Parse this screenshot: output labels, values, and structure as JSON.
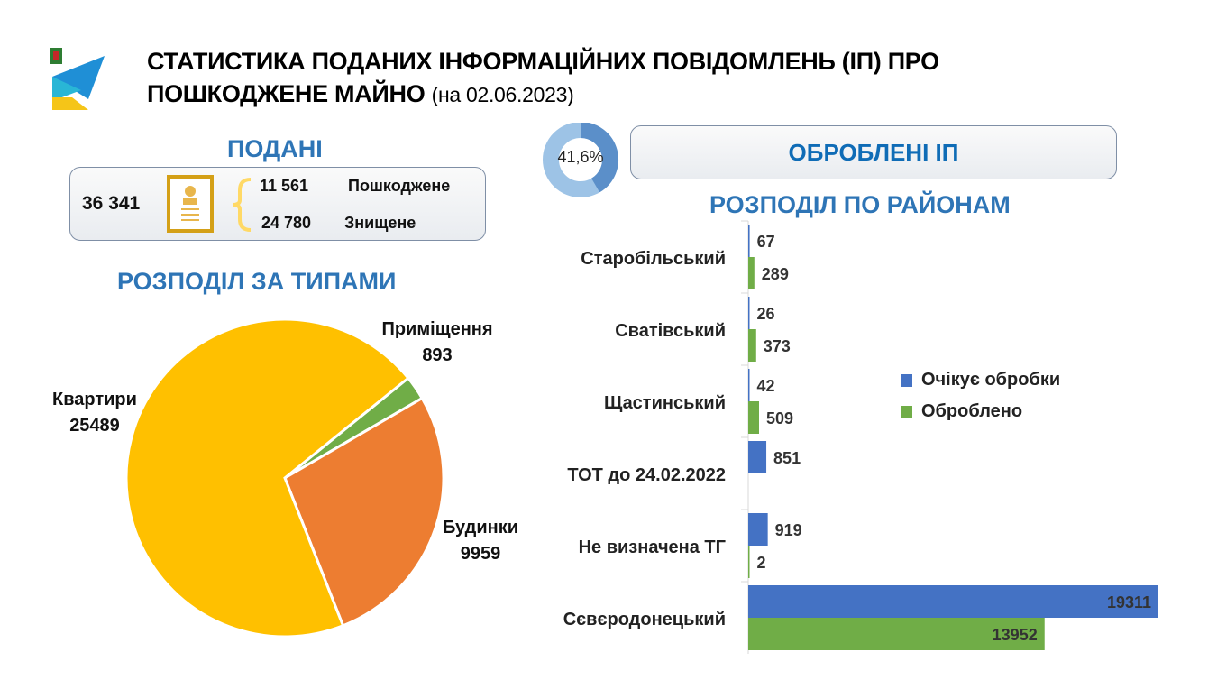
{
  "header": {
    "title_line1": "СТАТИСТИКА ПОДАНИХ ІНФОРМАЦІЙНИХ ПОВІДОМЛЕНЬ (ІП) ПРО",
    "title_line2": "ПОШКОДЖЕНЕ МАЙНО",
    "date": "(на 02.06.2023)"
  },
  "submitted": {
    "heading": "ПОДАНІ",
    "total": "36 341",
    "damaged_value": "11 561",
    "damaged_label": "Пошкоджене",
    "destroyed_value": "24 780",
    "destroyed_label": "Знищене"
  },
  "processed": {
    "percent": "41,6%",
    "percent_value": 41.6,
    "heading": "ОБРОБЛЕНІ ІП"
  },
  "chart_data": [
    {
      "type": "pie",
      "title": "РОЗПОДІЛ ЗА ТИПАМИ",
      "slices": [
        {
          "label": "Приміщення",
          "value": 893,
          "color": "#70ad47"
        },
        {
          "label": "Будинки",
          "value": 9959,
          "color": "#ed7d31"
        },
        {
          "label": "Квартири",
          "value": 25489,
          "color": "#ffc000"
        }
      ]
    },
    {
      "type": "bar",
      "orientation": "horizontal",
      "title": "РОЗПОДІЛ ПО РАЙОНАМ",
      "categories": [
        "Старобільський",
        "Сватівський",
        "Щастинський",
        "ТОТ до 24.02.2022",
        "Не визначена ТГ",
        "Сєвєродонецький"
      ],
      "series": [
        {
          "name": "Очікує обробки",
          "color": "#4472c4",
          "values": [
            67,
            26,
            42,
            851,
            919,
            19311
          ]
        },
        {
          "name": "Оброблено",
          "color": "#70ad47",
          "values": [
            289,
            373,
            509,
            null,
            2,
            13952
          ]
        }
      ],
      "legend": "right"
    }
  ]
}
